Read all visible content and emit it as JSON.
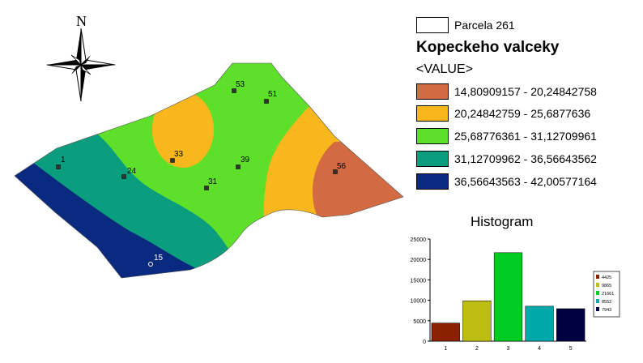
{
  "legend": {
    "parcel_label": "Parcela 261",
    "title": "Kopeckeho valceky",
    "value_label": "<VALUE>",
    "classes": [
      {
        "range": "14,80909157 - 20,24842758",
        "color": "#d46a42"
      },
      {
        "range": "20,24842759 - 25,6877636",
        "color": "#f7b71d"
      },
      {
        "range": "25,68776361 - 31,12709961",
        "color": "#5ee02a"
      },
      {
        "range": "31,12709962 - 36,56643562",
        "color": "#0b9e7e"
      },
      {
        "range": "36,56643563 - 42,00577164",
        "color": "#0a2a80"
      }
    ]
  },
  "north_arrow": {
    "label": "N"
  },
  "sample_points": [
    "1",
    "24",
    "33",
    "53",
    "51",
    "39",
    "31",
    "56",
    "15"
  ],
  "histogram": {
    "title": "Histogram",
    "chart_data": {
      "type": "bar",
      "categories": [
        "1",
        "2",
        "3",
        "4",
        "5"
      ],
      "values": [
        4425,
        9865,
        21661,
        8552,
        7943
      ],
      "ylim": [
        0,
        25000
      ],
      "y_ticks": [
        "0",
        "5000",
        "10000",
        "15000",
        "20000",
        "25000"
      ],
      "colors": [
        "#8b2000",
        "#bdbd12",
        "#00cc22",
        "#00a9a9",
        "#000040"
      ],
      "legend_labels": [
        "4425",
        "9865",
        "21661",
        "8552",
        "7943"
      ],
      "legend_position": "right",
      "grid": false
    }
  }
}
